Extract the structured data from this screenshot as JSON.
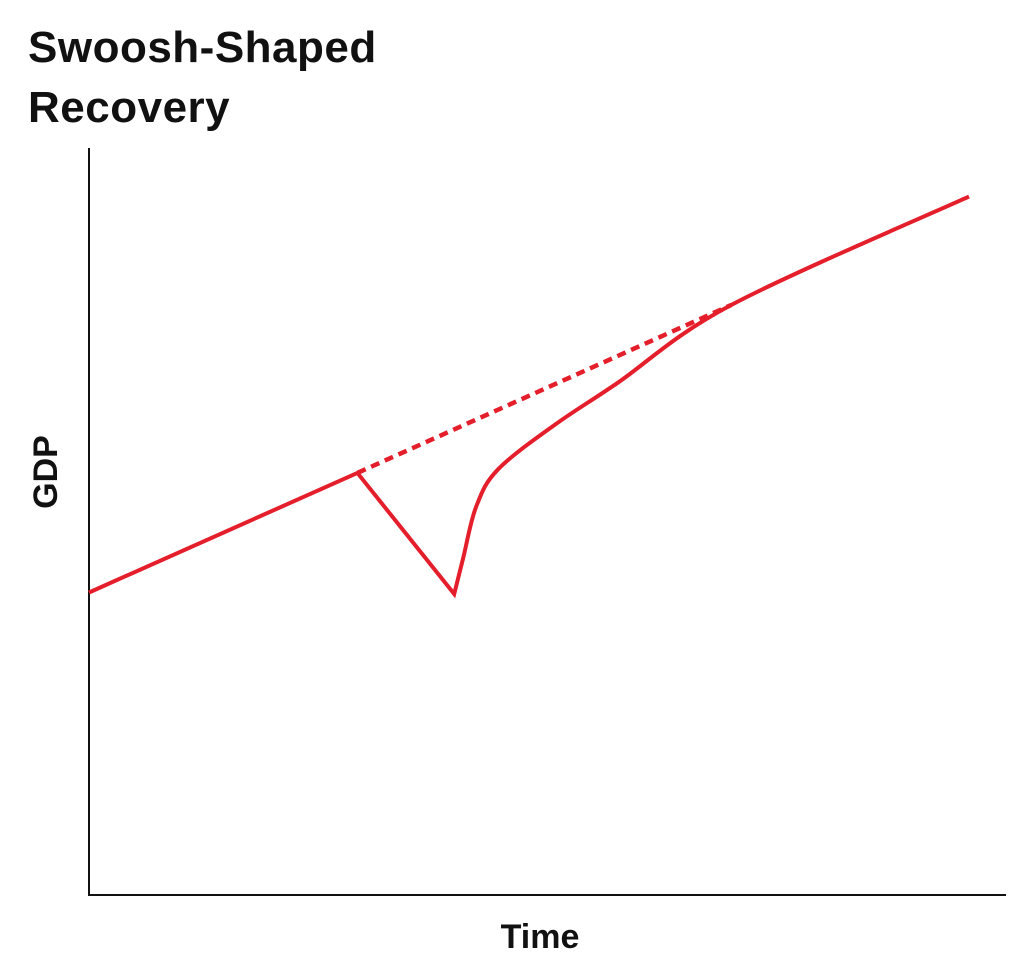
{
  "chart_data": {
    "type": "line",
    "title_lines": [
      "Swoosh-Shaped",
      "Recovery"
    ],
    "xlabel": "Time",
    "ylabel": "GDP",
    "grid": false,
    "legend": "none",
    "xlim": [
      0,
      100
    ],
    "ylim": [
      0,
      100
    ],
    "series": [
      {
        "style": "solid",
        "color": "#e41e2b",
        "points": [
          [
            0,
            40.5
          ],
          [
            30.5,
            56.5
          ],
          [
            41.5,
            40.3
          ],
          [
            42.5,
            45
          ],
          [
            44,
            52
          ],
          [
            46.5,
            57
          ],
          [
            53,
            63
          ],
          [
            60,
            68.5
          ],
          [
            73,
            79
          ],
          [
            100,
            93.5
          ]
        ]
      },
      {
        "style": "dashed",
        "color": "#e41e2b",
        "points": [
          [
            30.5,
            56.5
          ],
          [
            73,
            79
          ]
        ]
      }
    ]
  }
}
